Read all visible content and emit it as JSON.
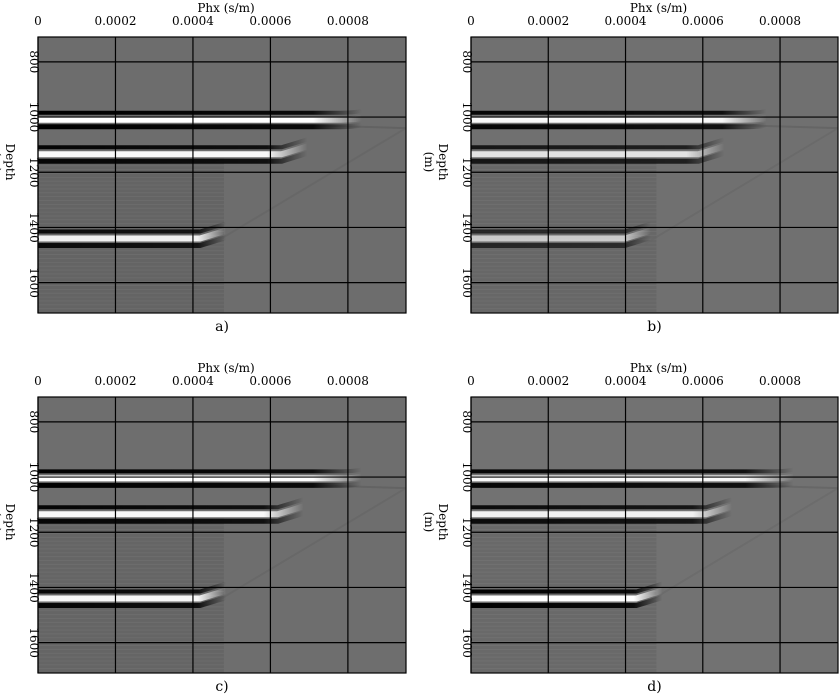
{
  "chart_data": {
    "type": "heatmap",
    "xlabel": "Phx (s/m)",
    "ylabel": "Depth\n(m)",
    "xlim": [
      0,
      0.00095
    ],
    "ylim": [
      1710,
      710
    ],
    "xticks": [
      "0",
      "0.0002",
      "0.0004",
      "0.0006",
      "0.0008"
    ],
    "yticks": [
      "800",
      "1000",
      "1200",
      "1400",
      "1600"
    ],
    "grid": true,
    "colormap": "grayscale",
    "panels": [
      {
        "label": "a)",
        "background": "#6d6d6d",
        "events": [
          {
            "depth": 1010,
            "x_end": 0.00082,
            "polarity": "white",
            "strength": 1.0
          },
          {
            "depth": 1135,
            "x_end": 0.00068,
            "polarity": "white",
            "strength": 0.95
          },
          {
            "depth": 1440,
            "x_end": 0.00047,
            "polarity": "white",
            "strength": 0.9
          }
        ]
      },
      {
        "label": "b)",
        "background": "#707070",
        "events": [
          {
            "depth": 1010,
            "x_end": 0.00075,
            "polarity": "white",
            "strength": 0.95
          },
          {
            "depth": 1135,
            "x_end": 0.00064,
            "polarity": "white",
            "strength": 0.8
          },
          {
            "depth": 1440,
            "x_end": 0.00045,
            "polarity": "white",
            "strength": 0.65
          }
        ]
      },
      {
        "label": "c)",
        "background": "#6e6e6e",
        "events": [
          {
            "depth": 1005,
            "x_end": 0.00082,
            "polarity": "white",
            "strength": 1.0
          },
          {
            "depth": 1135,
            "x_end": 0.00067,
            "polarity": "white",
            "strength": 0.95
          },
          {
            "depth": 1440,
            "x_end": 0.00047,
            "polarity": "white",
            "strength": 0.95
          }
        ]
      },
      {
        "label": "d)",
        "background": "#727272",
        "events": [
          {
            "depth": 1005,
            "x_end": 0.00082,
            "polarity": "white",
            "strength": 0.95
          },
          {
            "depth": 1135,
            "x_end": 0.00066,
            "polarity": "white",
            "strength": 0.9
          },
          {
            "depth": 1440,
            "x_end": 0.00048,
            "polarity": "white",
            "strength": 1.0
          }
        ]
      }
    ]
  }
}
